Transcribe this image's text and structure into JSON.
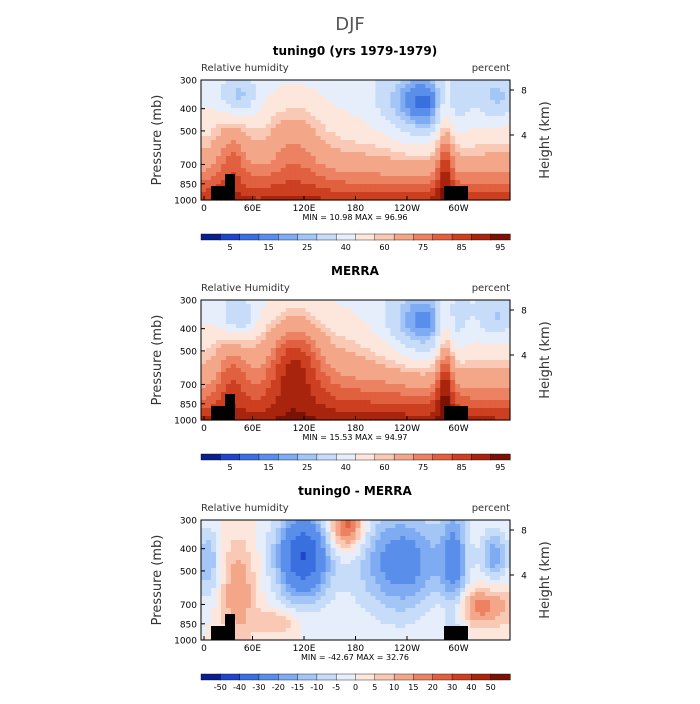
{
  "figure": {
    "title": "DJF"
  },
  "chart_data": [
    {
      "type": "heatmap",
      "title": "tuning0 (yrs 1979-1979)",
      "left_label": "Relative humidity",
      "right_label": "percent",
      "ylabel": "Pressure (mb)",
      "ylabel_right": "Height (km)",
      "y_ticks": [
        "300",
        "400",
        "500",
        "700",
        "850",
        "1000"
      ],
      "y_ticks_right": [
        "8",
        "4"
      ],
      "x_ticks": [
        "0",
        "60E",
        "120E",
        "180",
        "120W",
        "60W"
      ],
      "min_label": "MIN =",
      "min_value": "10.98",
      "max_label": "MAX =",
      "max_value": "96.96",
      "colorbar_labels": [
        "5",
        "15",
        "25",
        "40",
        "60",
        "75",
        "85",
        "95"
      ],
      "field": "rh"
    },
    {
      "type": "heatmap",
      "title": "MERRA",
      "left_label": "Relative Humidity",
      "right_label": "percent",
      "ylabel": "Pressure (mb)",
      "ylabel_right": "Height (km)",
      "y_ticks": [
        "300",
        "400",
        "500",
        "700",
        "850",
        "1000"
      ],
      "y_ticks_right": [
        "8",
        "4"
      ],
      "x_ticks": [
        "0",
        "60E",
        "120E",
        "180",
        "120W",
        "60W"
      ],
      "min_label": "MIN =",
      "min_value": "15.53",
      "max_label": "MAX =",
      "max_value": "94.97",
      "colorbar_labels": [
        "5",
        "15",
        "25",
        "40",
        "60",
        "75",
        "85",
        "95"
      ],
      "field": "rh_merra"
    },
    {
      "type": "heatmap",
      "title": "tuning0 - MERRA",
      "left_label": "Relative humidity",
      "right_label": "percent",
      "ylabel": "Pressure (mb)",
      "ylabel_right": "Height (km)",
      "y_ticks": [
        "300",
        "400",
        "500",
        "700",
        "850",
        "1000"
      ],
      "y_ticks_right": [
        "8",
        "4"
      ],
      "x_ticks": [
        "0",
        "60E",
        "120E",
        "180",
        "120W",
        "60W"
      ],
      "min_label": "MIN =",
      "min_value": "-42.67",
      "max_label": "MAX =",
      "max_value": "32.76",
      "colorbar_labels": [
        "-50",
        "-40",
        "-30",
        "-20",
        "-15",
        "-10",
        "-5",
        "0",
        "5",
        "10",
        "15",
        "20",
        "30",
        "40",
        "50"
      ],
      "field": "diff"
    }
  ],
  "colors": {
    "rh_scale": [
      "#0a1f8c",
      "#1f46c8",
      "#3a6fe0",
      "#5a8eeb",
      "#7eabf2",
      "#a4c6f6",
      "#c6dcf9",
      "#e6eefc",
      "#fde7dd",
      "#f9c9b5",
      "#f3a788",
      "#ec8262",
      "#e0603f",
      "#cc3f20",
      "#a8240c",
      "#7a1205"
    ],
    "diff_scale": [
      "#0a1f8c",
      "#1f46c8",
      "#3a6fe0",
      "#5a8eeb",
      "#7eabf2",
      "#a4c6f6",
      "#c6dcf9",
      "#e6eefc",
      "#fde7dd",
      "#f9c9b5",
      "#f3a788",
      "#ec8262",
      "#e0603f",
      "#cc3f20",
      "#a8240c",
      "#7a1205"
    ]
  }
}
